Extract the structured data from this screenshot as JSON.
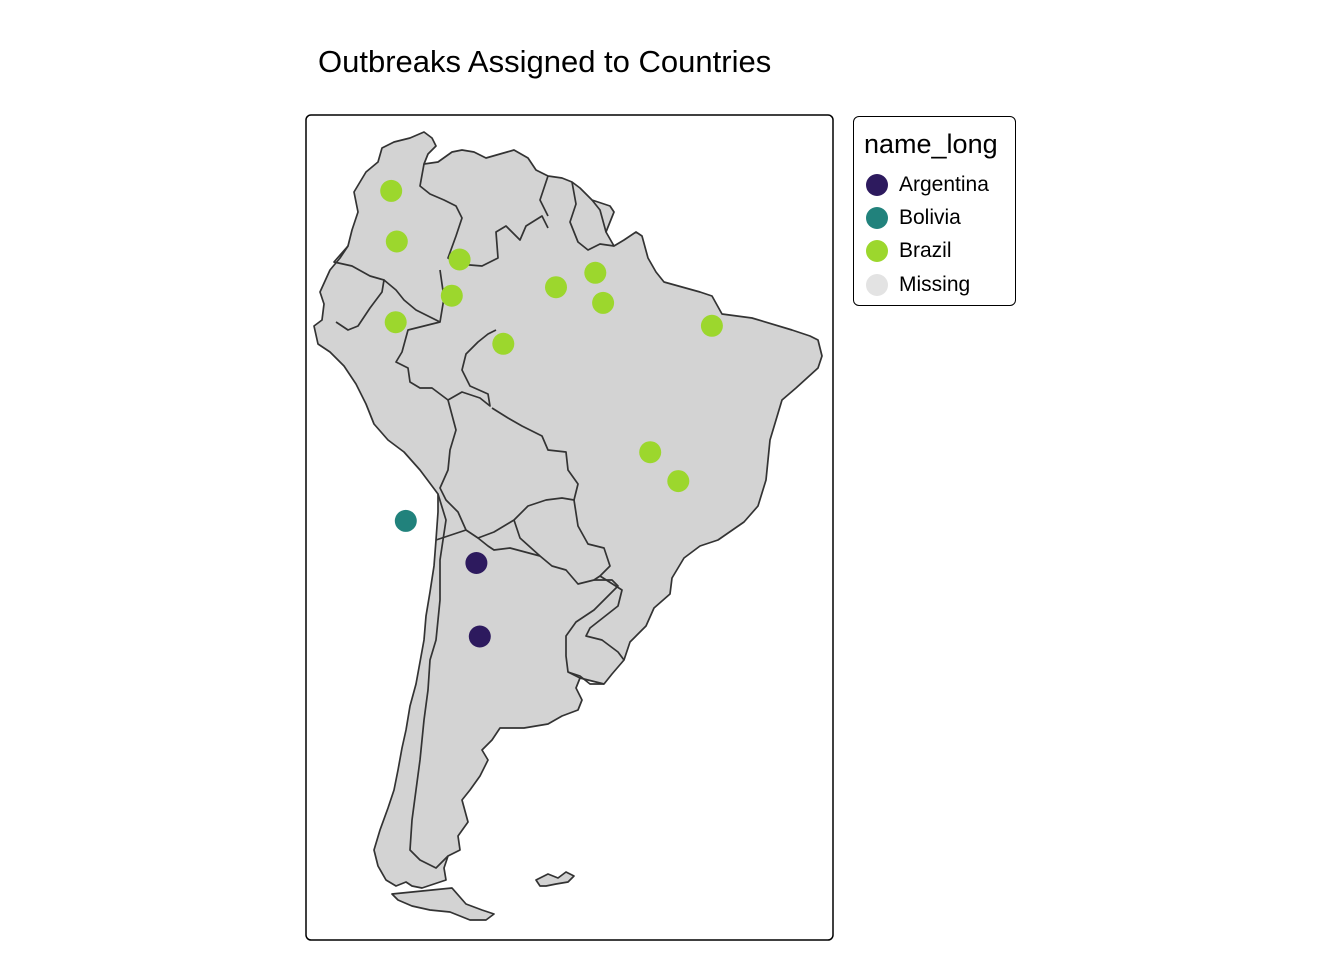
{
  "title": "Outbreaks Assigned to Countries",
  "legend": {
    "title": "name_long",
    "items": [
      {
        "label": "Argentina",
        "color": "#2d1a5e"
      },
      {
        "label": "Bolivia",
        "color": "#21827c"
      },
      {
        "label": "Brazil",
        "color": "#9cd72d"
      },
      {
        "label": "Missing",
        "color": "#e3e3e3"
      }
    ]
  },
  "colors": {
    "land": "#d3d3d3",
    "border": "#333333",
    "frame": "#000000"
  },
  "map_data": {
    "region": "South America",
    "points": [
      {
        "lon": -73.9,
        "lat": 6.2,
        "country": "Brazil"
      },
      {
        "lon": -73.4,
        "lat": 2.0,
        "country": "Brazil"
      },
      {
        "lon": -67.8,
        "lat": 0.5,
        "country": "Brazil"
      },
      {
        "lon": -68.5,
        "lat": -2.5,
        "country": "Brazil"
      },
      {
        "lon": -73.5,
        "lat": -4.7,
        "country": "Brazil"
      },
      {
        "lon": -63.9,
        "lat": -6.5,
        "country": "Brazil"
      },
      {
        "lon": -59.2,
        "lat": -1.8,
        "country": "Brazil"
      },
      {
        "lon": -55.7,
        "lat": -0.6,
        "country": "Brazil"
      },
      {
        "lon": -55.0,
        "lat": -3.1,
        "country": "Brazil"
      },
      {
        "lon": -45.3,
        "lat": -5.0,
        "country": "Brazil"
      },
      {
        "lon": -50.8,
        "lat": -15.5,
        "country": "Brazil"
      },
      {
        "lon": -48.3,
        "lat": -17.9,
        "country": "Brazil"
      },
      {
        "lon": -72.6,
        "lat": -21.2,
        "country": "Bolivia"
      },
      {
        "lon": -66.3,
        "lat": -24.7,
        "country": "Argentina"
      },
      {
        "lon": -66.0,
        "lat": -30.8,
        "country": "Argentina"
      }
    ]
  }
}
